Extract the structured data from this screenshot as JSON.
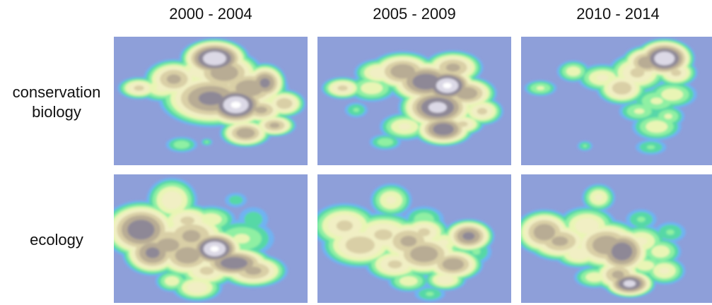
{
  "chart_data": {
    "type": "heatmap",
    "columns": [
      "2000 - 2004",
      "2005 - 2009",
      "2010 - 2014"
    ],
    "rows": [
      "conservation biology",
      "ecology"
    ],
    "row_label_lines": [
      [
        "conservation",
        "biology"
      ],
      [
        "ecology"
      ]
    ],
    "colors": {
      "background": "#8e9fd9",
      "levels": [
        "#6fb3f2",
        "#57d8a6",
        "#8ff0a3",
        "#e9f5b5",
        "#f1efc4",
        "#d9cfa6",
        "#b8ac94",
        "#8e8896",
        "#dcd9e6",
        "#ffffff"
      ]
    },
    "panels": [
      {
        "row": 0,
        "col": 0,
        "blobs": [
          [
            0.13,
            0.4,
            0.05,
            0.04,
            0.6
          ],
          [
            0.25,
            0.4,
            0.06,
            0.05,
            0.5
          ],
          [
            0.31,
            0.33,
            0.07,
            0.07,
            0.7
          ],
          [
            0.52,
            0.17,
            0.08,
            0.07,
            0.95
          ],
          [
            0.57,
            0.28,
            0.09,
            0.08,
            0.75
          ],
          [
            0.5,
            0.48,
            0.12,
            0.1,
            0.8
          ],
          [
            0.63,
            0.53,
            0.08,
            0.08,
            0.97
          ],
          [
            0.7,
            0.4,
            0.09,
            0.08,
            0.75
          ],
          [
            0.78,
            0.36,
            0.05,
            0.07,
            0.8
          ],
          [
            0.76,
            0.57,
            0.06,
            0.05,
            0.7
          ],
          [
            0.88,
            0.52,
            0.05,
            0.05,
            0.65
          ],
          [
            0.83,
            0.69,
            0.05,
            0.04,
            0.7
          ],
          [
            0.68,
            0.75,
            0.06,
            0.05,
            0.75
          ],
          [
            0.36,
            0.55,
            0.04,
            0.04,
            0.45
          ],
          [
            0.45,
            0.27,
            0.07,
            0.06,
            0.55
          ],
          [
            0.35,
            0.84,
            0.04,
            0.03,
            0.35
          ],
          [
            0.48,
            0.82,
            0.015,
            0.015,
            0.3
          ]
        ]
      },
      {
        "row": 0,
        "col": 1,
        "blobs": [
          [
            0.13,
            0.4,
            0.05,
            0.04,
            0.6
          ],
          [
            0.2,
            0.57,
            0.03,
            0.03,
            0.3
          ],
          [
            0.28,
            0.4,
            0.06,
            0.05,
            0.45
          ],
          [
            0.32,
            0.28,
            0.06,
            0.05,
            0.55
          ],
          [
            0.44,
            0.27,
            0.08,
            0.07,
            0.75
          ],
          [
            0.56,
            0.35,
            0.09,
            0.08,
            0.85
          ],
          [
            0.67,
            0.38,
            0.07,
            0.07,
            0.97
          ],
          [
            0.62,
            0.55,
            0.09,
            0.08,
            0.9
          ],
          [
            0.7,
            0.24,
            0.07,
            0.06,
            0.7
          ],
          [
            0.77,
            0.44,
            0.07,
            0.06,
            0.75
          ],
          [
            0.85,
            0.58,
            0.05,
            0.05,
            0.6
          ],
          [
            0.65,
            0.72,
            0.07,
            0.06,
            0.85
          ],
          [
            0.75,
            0.68,
            0.05,
            0.04,
            0.6
          ],
          [
            0.45,
            0.7,
            0.06,
            0.05,
            0.5
          ],
          [
            0.35,
            0.82,
            0.04,
            0.03,
            0.35
          ]
        ]
      },
      {
        "row": 0,
        "col": 2,
        "blobs": [
          [
            0.1,
            0.4,
            0.04,
            0.03,
            0.4
          ],
          [
            0.27,
            0.27,
            0.04,
            0.04,
            0.45
          ],
          [
            0.42,
            0.32,
            0.06,
            0.05,
            0.5
          ],
          [
            0.52,
            0.4,
            0.06,
            0.06,
            0.65
          ],
          [
            0.6,
            0.28,
            0.07,
            0.07,
            0.6
          ],
          [
            0.65,
            0.2,
            0.06,
            0.06,
            0.75
          ],
          [
            0.74,
            0.17,
            0.07,
            0.07,
            0.95
          ],
          [
            0.8,
            0.28,
            0.05,
            0.05,
            0.6
          ],
          [
            0.78,
            0.45,
            0.06,
            0.05,
            0.45
          ],
          [
            0.7,
            0.5,
            0.06,
            0.05,
            0.4
          ],
          [
            0.7,
            0.7,
            0.06,
            0.05,
            0.45
          ],
          [
            0.76,
            0.62,
            0.04,
            0.04,
            0.4
          ],
          [
            0.61,
            0.58,
            0.05,
            0.04,
            0.4
          ],
          [
            0.33,
            0.85,
            0.02,
            0.02,
            0.3
          ],
          [
            0.67,
            0.86,
            0.04,
            0.03,
            0.3
          ]
        ]
      },
      {
        "row": 1,
        "col": 0,
        "blobs": [
          [
            0.14,
            0.43,
            0.09,
            0.1,
            0.85
          ],
          [
            0.2,
            0.61,
            0.07,
            0.08,
            0.8
          ],
          [
            0.3,
            0.2,
            0.06,
            0.08,
            0.55
          ],
          [
            0.28,
            0.55,
            0.11,
            0.1,
            0.7
          ],
          [
            0.4,
            0.48,
            0.09,
            0.09,
            0.7
          ],
          [
            0.38,
            0.63,
            0.08,
            0.08,
            0.75
          ],
          [
            0.52,
            0.58,
            0.07,
            0.07,
            0.97
          ],
          [
            0.62,
            0.69,
            0.09,
            0.06,
            0.85
          ],
          [
            0.72,
            0.75,
            0.08,
            0.06,
            0.7
          ],
          [
            0.48,
            0.75,
            0.07,
            0.06,
            0.6
          ],
          [
            0.43,
            0.88,
            0.06,
            0.05,
            0.55
          ],
          [
            0.38,
            0.36,
            0.07,
            0.06,
            0.6
          ],
          [
            0.3,
            0.83,
            0.04,
            0.04,
            0.45
          ],
          [
            0.5,
            0.35,
            0.06,
            0.05,
            0.45
          ],
          [
            0.66,
            0.5,
            0.08,
            0.07,
            0.4
          ],
          [
            0.72,
            0.35,
            0.04,
            0.05,
            0.25
          ],
          [
            0.63,
            0.2,
            0.03,
            0.03,
            0.25
          ]
        ]
      },
      {
        "row": 1,
        "col": 1,
        "blobs": [
          [
            0.14,
            0.4,
            0.08,
            0.08,
            0.6
          ],
          [
            0.22,
            0.55,
            0.09,
            0.08,
            0.65
          ],
          [
            0.38,
            0.2,
            0.05,
            0.06,
            0.5
          ],
          [
            0.34,
            0.47,
            0.09,
            0.08,
            0.6
          ],
          [
            0.47,
            0.52,
            0.08,
            0.08,
            0.7
          ],
          [
            0.55,
            0.45,
            0.06,
            0.06,
            0.6
          ],
          [
            0.55,
            0.62,
            0.09,
            0.08,
            0.75
          ],
          [
            0.7,
            0.7,
            0.07,
            0.06,
            0.75
          ],
          [
            0.4,
            0.7,
            0.07,
            0.06,
            0.6
          ],
          [
            0.78,
            0.48,
            0.06,
            0.06,
            0.8
          ],
          [
            0.66,
            0.82,
            0.05,
            0.04,
            0.55
          ],
          [
            0.47,
            0.83,
            0.05,
            0.04,
            0.45
          ],
          [
            0.65,
            0.53,
            0.05,
            0.05,
            0.5
          ],
          [
            0.55,
            0.35,
            0.05,
            0.05,
            0.35
          ],
          [
            0.82,
            0.6,
            0.04,
            0.05,
            0.3
          ],
          [
            0.58,
            0.93,
            0.04,
            0.03,
            0.3
          ]
        ]
      },
      {
        "row": 1,
        "col": 2,
        "blobs": [
          [
            0.12,
            0.45,
            0.07,
            0.08,
            0.75
          ],
          [
            0.2,
            0.52,
            0.08,
            0.07,
            0.7
          ],
          [
            0.34,
            0.4,
            0.07,
            0.07,
            0.55
          ],
          [
            0.4,
            0.18,
            0.04,
            0.05,
            0.5
          ],
          [
            0.44,
            0.55,
            0.09,
            0.09,
            0.75
          ],
          [
            0.52,
            0.6,
            0.07,
            0.09,
            0.85
          ],
          [
            0.5,
            0.78,
            0.06,
            0.06,
            0.7
          ],
          [
            0.56,
            0.85,
            0.06,
            0.05,
            0.9
          ],
          [
            0.3,
            0.62,
            0.06,
            0.05,
            0.55
          ],
          [
            0.62,
            0.52,
            0.06,
            0.06,
            0.5
          ],
          [
            0.72,
            0.6,
            0.05,
            0.05,
            0.45
          ],
          [
            0.74,
            0.75,
            0.05,
            0.05,
            0.5
          ],
          [
            0.64,
            0.71,
            0.05,
            0.04,
            0.45
          ],
          [
            0.38,
            0.8,
            0.05,
            0.04,
            0.45
          ],
          [
            0.62,
            0.35,
            0.04,
            0.04,
            0.3
          ],
          [
            0.77,
            0.45,
            0.04,
            0.04,
            0.3
          ]
        ]
      }
    ]
  }
}
